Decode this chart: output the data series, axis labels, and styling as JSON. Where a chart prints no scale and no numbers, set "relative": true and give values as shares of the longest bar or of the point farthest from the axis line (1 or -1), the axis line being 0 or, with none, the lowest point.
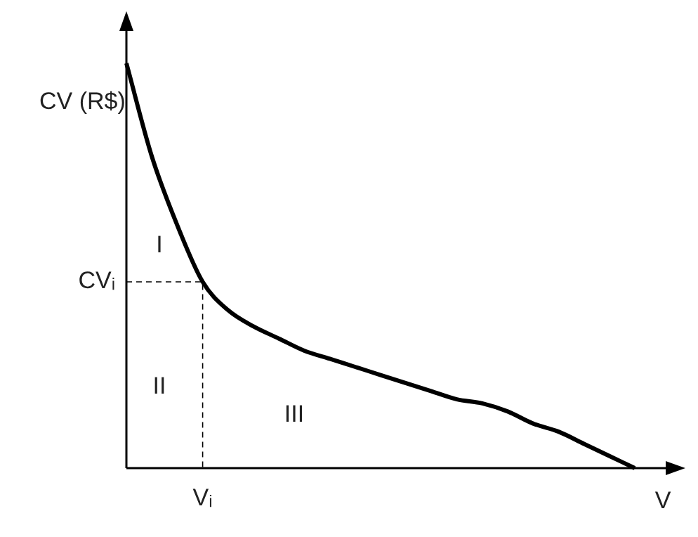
{
  "chart_data": {
    "type": "line",
    "xlabel": "V",
    "ylabel": "CV (R$)",
    "relative": true,
    "color": "#000000",
    "marker": "none",
    "line_style": "solid",
    "legend": false,
    "categories": [
      null,
      null,
      null,
      null,
      null,
      null,
      null,
      null,
      null,
      null,
      null,
      null,
      null,
      null,
      null,
      null,
      null,
      null,
      null,
      null,
      null
    ],
    "values": [
      1.0,
      0.77,
      0.6,
      0.46,
      0.39,
      0.35,
      0.32,
      0.29,
      0.27,
      0.25,
      0.23,
      0.21,
      0.19,
      0.17,
      0.16,
      0.14,
      0.11,
      0.09,
      0.06,
      0.03,
      0
    ],
    "ref_lines": [
      {
        "axis": "y",
        "value": 0.46,
        "label": "CVᵢ",
        "line_style": "dashed"
      }
    ],
    "annotations": [
      "I",
      "II",
      "III",
      "Vᵢ"
    ]
  }
}
